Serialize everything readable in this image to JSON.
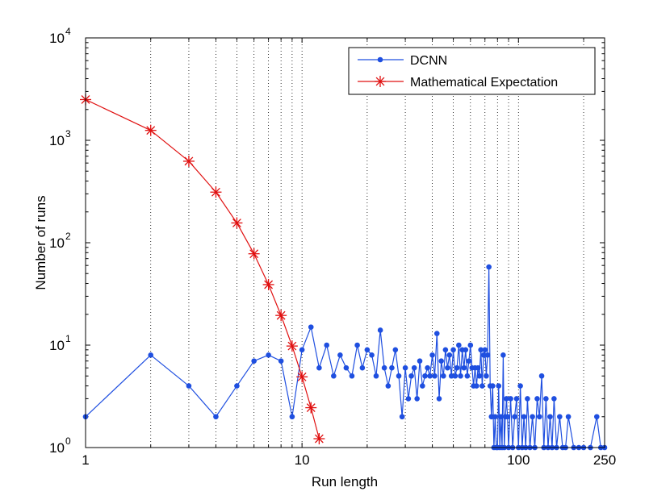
{
  "chart_data": {
    "type": "line",
    "xscale": "log",
    "yscale": "log",
    "xlabel": "Run length",
    "ylabel": "Number of runs",
    "xlim": [
      1,
      250
    ],
    "ylim": [
      1,
      10000
    ],
    "x_ticks": [
      {
        "value": 1,
        "label": "1"
      },
      {
        "value": 10,
        "label": "10"
      },
      {
        "value": 100,
        "label": "100"
      },
      {
        "value": 250,
        "label": "250"
      }
    ],
    "y_ticks": [
      {
        "value": 1,
        "base": "10",
        "exp": "0"
      },
      {
        "value": 10,
        "base": "10",
        "exp": "1"
      },
      {
        "value": 100,
        "base": "10",
        "exp": "2"
      },
      {
        "value": 1000,
        "base": "10",
        "exp": "3"
      },
      {
        "value": 10000,
        "base": "10",
        "exp": "4"
      }
    ],
    "x_gridlines": [
      2,
      3,
      4,
      5,
      6,
      7,
      8,
      9,
      10,
      20,
      30,
      40,
      50,
      60,
      70,
      80,
      90,
      100,
      200
    ],
    "legend_position": "top-right",
    "series": [
      {
        "name": "DCNN",
        "color": "#1f4fe0",
        "marker": "dot",
        "points": [
          [
            1,
            2
          ],
          [
            2,
            8
          ],
          [
            3,
            4
          ],
          [
            4,
            2
          ],
          [
            5,
            4
          ],
          [
            6,
            7
          ],
          [
            7,
            8
          ],
          [
            8,
            7
          ],
          [
            9,
            2
          ],
          [
            10,
            9
          ],
          [
            11,
            15
          ],
          [
            12,
            6
          ],
          [
            13,
            10
          ],
          [
            14,
            5
          ],
          [
            15,
            8
          ],
          [
            16,
            6
          ],
          [
            17,
            5
          ],
          [
            18,
            10
          ],
          [
            19,
            6
          ],
          [
            20,
            9
          ],
          [
            21,
            8
          ],
          [
            22,
            5
          ],
          [
            23,
            14
          ],
          [
            24,
            6
          ],
          [
            25,
            4
          ],
          [
            26,
            6
          ],
          [
            27,
            9
          ],
          [
            28,
            5
          ],
          [
            29,
            2
          ],
          [
            30,
            6
          ],
          [
            31,
            3
          ],
          [
            32,
            5
          ],
          [
            33,
            6
          ],
          [
            34,
            3
          ],
          [
            35,
            7
          ],
          [
            36,
            4
          ],
          [
            37,
            5
          ],
          [
            38,
            6
          ],
          [
            39,
            5
          ],
          [
            40,
            8
          ],
          [
            41,
            5
          ],
          [
            42,
            13
          ],
          [
            43,
            3
          ],
          [
            44,
            7
          ],
          [
            45,
            5
          ],
          [
            46,
            9
          ],
          [
            47,
            6
          ],
          [
            48,
            8
          ],
          [
            49,
            5
          ],
          [
            50,
            9
          ],
          [
            51,
            5
          ],
          [
            52,
            6
          ],
          [
            53,
            10
          ],
          [
            54,
            5
          ],
          [
            55,
            9
          ],
          [
            56,
            6
          ],
          [
            57,
            9
          ],
          [
            58,
            5
          ],
          [
            59,
            7
          ],
          [
            60,
            10
          ],
          [
            61,
            6
          ],
          [
            62,
            4
          ],
          [
            63,
            6
          ],
          [
            64,
            4
          ],
          [
            65,
            6
          ],
          [
            66,
            5
          ],
          [
            67,
            9
          ],
          [
            68,
            4
          ],
          [
            69,
            8
          ],
          [
            70,
            9
          ],
          [
            71,
            5
          ],
          [
            72,
            8
          ],
          [
            73,
            58
          ],
          [
            74,
            4
          ],
          [
            75,
            2
          ],
          [
            76,
            4
          ],
          [
            77,
            1
          ],
          [
            78,
            2
          ],
          [
            79,
            1
          ],
          [
            80,
            1
          ],
          [
            81,
            4
          ],
          [
            82,
            1
          ],
          [
            83,
            2
          ],
          [
            84,
            1
          ],
          [
            85,
            8
          ],
          [
            86,
            1
          ],
          [
            87,
            2
          ],
          [
            88,
            3
          ],
          [
            89,
            2
          ],
          [
            90,
            1
          ],
          [
            92,
            3
          ],
          [
            94,
            1
          ],
          [
            96,
            2
          ],
          [
            98,
            3
          ],
          [
            100,
            1
          ],
          [
            102,
            4
          ],
          [
            104,
            1
          ],
          [
            106,
            2
          ],
          [
            108,
            1
          ],
          [
            110,
            3
          ],
          [
            113,
            1
          ],
          [
            116,
            2
          ],
          [
            119,
            1
          ],
          [
            122,
            3
          ],
          [
            125,
            2
          ],
          [
            128,
            5
          ],
          [
            131,
            1
          ],
          [
            134,
            3
          ],
          [
            137,
            1
          ],
          [
            140,
            2
          ],
          [
            143,
            1
          ],
          [
            146,
            3
          ],
          [
            150,
            1
          ],
          [
            155,
            2
          ],
          [
            160,
            1
          ],
          [
            165,
            1
          ],
          [
            170,
            2
          ],
          [
            180,
            1
          ],
          [
            190,
            1
          ],
          [
            200,
            1
          ],
          [
            215,
            1
          ],
          [
            230,
            2
          ],
          [
            240,
            1
          ],
          [
            250,
            1
          ]
        ]
      },
      {
        "name": "Mathematical Expectation",
        "color": "#e01010",
        "marker": "asterisk",
        "points": [
          [
            1,
            2500
          ],
          [
            2,
            1250
          ],
          [
            3,
            625
          ],
          [
            4,
            312
          ],
          [
            5,
            156
          ],
          [
            6,
            78
          ],
          [
            7,
            39
          ],
          [
            8,
            19.5
          ],
          [
            9,
            9.8
          ],
          [
            10,
            4.9
          ],
          [
            11,
            2.45
          ],
          [
            12,
            1.22
          ]
        ]
      }
    ]
  }
}
